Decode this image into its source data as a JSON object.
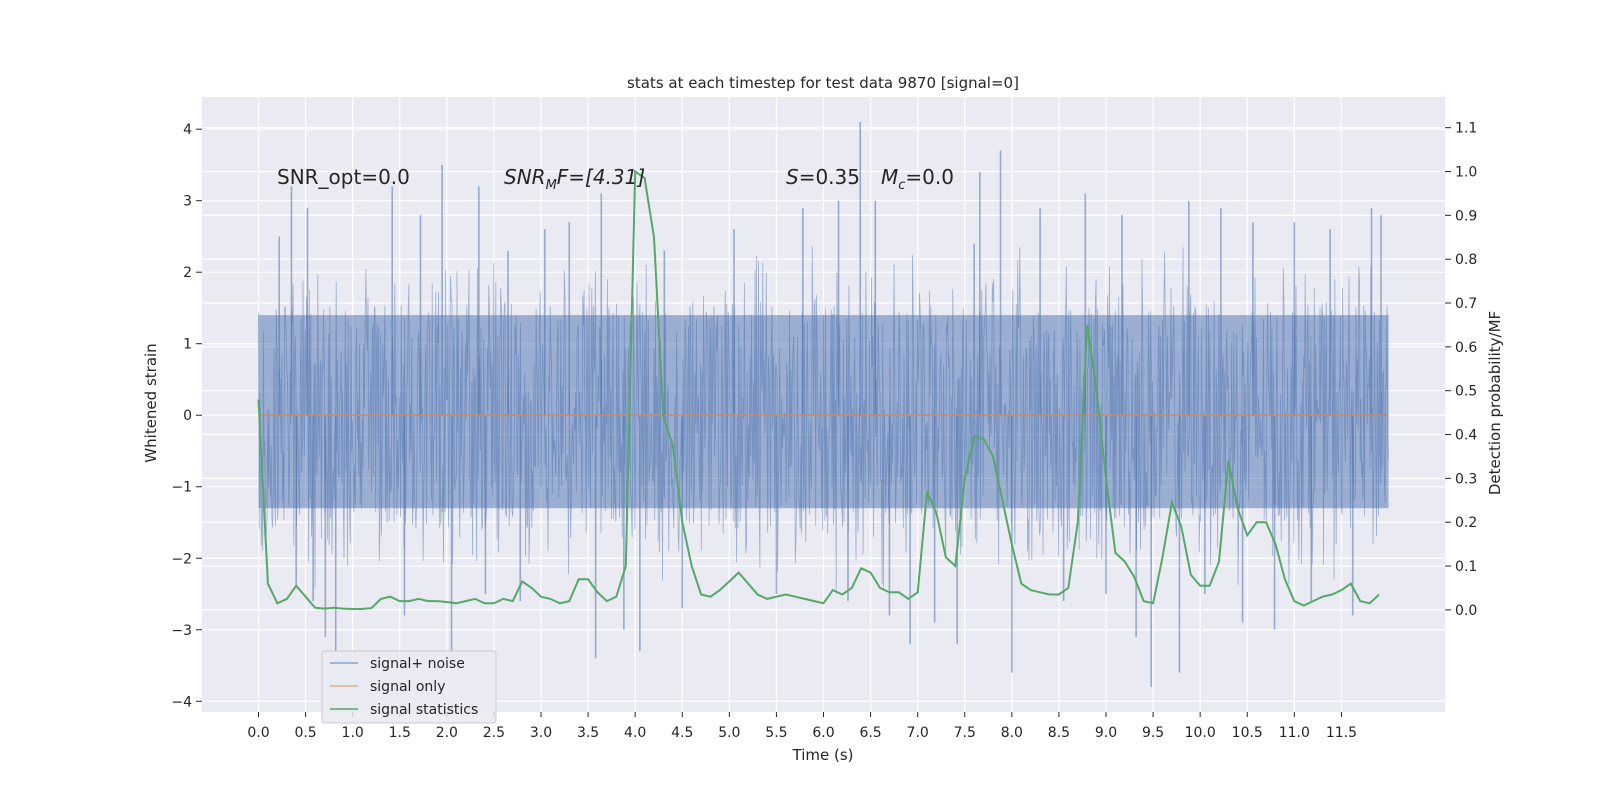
{
  "chart_data": {
    "type": "line",
    "title": "stats at each timestep for test data 9870 [signal=0]",
    "xlabel": "Time (s)",
    "ylabel": "Whitened strain",
    "y2label": "Detection probability/MF",
    "xlim": [
      -0.6,
      12.6
    ],
    "ylim": [
      -4.15,
      4.45
    ],
    "y2lim": [
      -0.233,
      1.17
    ],
    "x_ticks": [
      0.0,
      0.5,
      1.0,
      1.5,
      2.0,
      2.5,
      3.0,
      3.5,
      4.0,
      4.5,
      5.0,
      5.5,
      6.0,
      6.5,
      7.0,
      7.5,
      8.0,
      8.5,
      9.0,
      9.5,
      10.0,
      10.5,
      11.0,
      11.5
    ],
    "x_tick_labels": [
      "0.0",
      "0.5",
      "1.0",
      "1.5",
      "2.0",
      "2.5",
      "3.0",
      "3.5",
      "4.0",
      "4.5",
      "5.0",
      "5.5",
      "6.0",
      "6.5",
      "7.0",
      "7.5",
      "8.0",
      "8.5",
      "9.0",
      "9.5",
      "10.0",
      "10.5",
      "11.0",
      "11.5"
    ],
    "y_ticks": [
      -4,
      -3,
      -2,
      -1,
      0,
      1,
      2,
      3,
      4
    ],
    "y_tick_labels": [
      "−4",
      "−3",
      "−2",
      "−1",
      "0",
      "1",
      "2",
      "3",
      "4"
    ],
    "y2_ticks": [
      0.0,
      0.1,
      0.2,
      0.3,
      0.4,
      0.5,
      0.6,
      0.7,
      0.8,
      0.9,
      1.0,
      1.1
    ],
    "y2_tick_labels": [
      "0.0",
      "0.1",
      "0.2",
      "0.3",
      "0.4",
      "0.5",
      "0.6",
      "0.7",
      "0.8",
      "0.9",
      "1.0",
      "1.1"
    ],
    "grid": true,
    "legend_position": "bottom-left",
    "annotations": {
      "snr_opt": "SNR_opt=0.0",
      "snr_mf_main": "SNR",
      "snr_mf_sub": "M",
      "snr_mf_tail": "F=[4.31]",
      "s_label": "S",
      "s_value": "=0.35",
      "mc_main": "M",
      "mc_sub": "c",
      "mc_value": "=0.0"
    },
    "colors": {
      "signal_noise": "#4c72b0",
      "signal_only": "#dd8452",
      "signal_statistics": "#55a868",
      "plot_bg": "#eaeaf2",
      "grid": "#ffffff"
    },
    "series": [
      {
        "name": "signal+ noise",
        "axis": "left",
        "style": "dense-noise",
        "x_range": [
          0.0,
          12.0
        ],
        "core_band": [
          -1.3,
          1.4
        ],
        "spikes": [
          {
            "x": 0.22,
            "y": 2.5
          },
          {
            "x": 0.35,
            "y": 3.2
          },
          {
            "x": 0.4,
            "y": -2.4
          },
          {
            "x": 0.52,
            "y": 2.9
          },
          {
            "x": 0.58,
            "y": -2.6
          },
          {
            "x": 0.71,
            "y": -3.1
          },
          {
            "x": 0.82,
            "y": -3.3
          },
          {
            "x": 1.42,
            "y": 3.2
          },
          {
            "x": 1.55,
            "y": -2.8
          },
          {
            "x": 1.72,
            "y": 2.8
          },
          {
            "x": 1.95,
            "y": 3.5
          },
          {
            "x": 2.05,
            "y": -3.3
          },
          {
            "x": 2.34,
            "y": 3.2
          },
          {
            "x": 2.41,
            "y": -2.5
          },
          {
            "x": 2.65,
            "y": 2.3
          },
          {
            "x": 2.78,
            "y": -2.6
          },
          {
            "x": 3.04,
            "y": 2.6
          },
          {
            "x": 3.3,
            "y": 2.7
          },
          {
            "x": 3.58,
            "y": -3.4
          },
          {
            "x": 3.64,
            "y": 3.1
          },
          {
            "x": 3.88,
            "y": -3.0
          },
          {
            "x": 4.05,
            "y": -3.3
          },
          {
            "x": 4.31,
            "y": 2.3
          },
          {
            "x": 4.5,
            "y": -2.7
          },
          {
            "x": 5.05,
            "y": 2.6
          },
          {
            "x": 5.5,
            "y": -2.5
          },
          {
            "x": 5.78,
            "y": 2.9
          },
          {
            "x": 6.16,
            "y": 3.0
          },
          {
            "x": 6.26,
            "y": -2.6
          },
          {
            "x": 6.39,
            "y": 4.1
          },
          {
            "x": 6.55,
            "y": 3.0
          },
          {
            "x": 6.7,
            "y": -2.8
          },
          {
            "x": 6.92,
            "y": -3.2
          },
          {
            "x": 7.18,
            "y": -2.9
          },
          {
            "x": 7.42,
            "y": -3.2
          },
          {
            "x": 7.6,
            "y": 2.4
          },
          {
            "x": 7.66,
            "y": 3.4
          },
          {
            "x": 7.88,
            "y": 3.7
          },
          {
            "x": 8.0,
            "y": -3.6
          },
          {
            "x": 8.3,
            "y": 2.9
          },
          {
            "x": 8.55,
            "y": -2.6
          },
          {
            "x": 8.78,
            "y": 3.1
          },
          {
            "x": 9.0,
            "y": -2.5
          },
          {
            "x": 9.17,
            "y": 2.8
          },
          {
            "x": 9.32,
            "y": -3.1
          },
          {
            "x": 9.48,
            "y": -3.8
          },
          {
            "x": 9.78,
            "y": -3.6
          },
          {
            "x": 9.88,
            "y": 3.0
          },
          {
            "x": 10.05,
            "y": -2.5
          },
          {
            "x": 10.22,
            "y": 2.9
          },
          {
            "x": 10.45,
            "y": -2.9
          },
          {
            "x": 10.56,
            "y": 2.7
          },
          {
            "x": 10.79,
            "y": -3.0
          },
          {
            "x": 11.0,
            "y": 2.7
          },
          {
            "x": 11.18,
            "y": -2.6
          },
          {
            "x": 11.38,
            "y": 2.6
          },
          {
            "x": 11.62,
            "y": -2.8
          },
          {
            "x": 11.82,
            "y": 2.9
          },
          {
            "x": 11.92,
            "y": 2.8
          }
        ]
      },
      {
        "name": "signal only",
        "axis": "left",
        "x": [
          0.0,
          12.0
        ],
        "y": [
          0.0,
          0.0
        ]
      },
      {
        "name": "signal statistics",
        "axis": "right",
        "x": [
          0.0,
          0.1,
          0.2,
          0.3,
          0.4,
          0.5,
          0.6,
          0.7,
          0.8,
          0.9,
          1.0,
          1.1,
          1.2,
          1.3,
          1.4,
          1.5,
          1.6,
          1.7,
          1.8,
          1.9,
          2.0,
          2.1,
          2.2,
          2.3,
          2.4,
          2.5,
          2.6,
          2.7,
          2.8,
          2.9,
          3.0,
          3.1,
          3.2,
          3.3,
          3.4,
          3.5,
          3.6,
          3.7,
          3.8,
          3.9,
          4.0,
          4.1,
          4.2,
          4.3,
          4.4,
          4.5,
          4.6,
          4.7,
          4.8,
          4.9,
          5.0,
          5.1,
          5.2,
          5.3,
          5.4,
          5.5,
          5.6,
          5.7,
          5.8,
          5.9,
          6.0,
          6.1,
          6.2,
          6.3,
          6.4,
          6.5,
          6.6,
          6.7,
          6.8,
          6.9,
          7.0,
          7.1,
          7.2,
          7.3,
          7.4,
          7.5,
          7.6,
          7.7,
          7.8,
          7.9,
          8.0,
          8.1,
          8.2,
          8.3,
          8.4,
          8.5,
          8.6,
          8.7,
          8.8,
          8.9,
          9.0,
          9.1,
          9.2,
          9.3,
          9.4,
          9.5,
          9.6,
          9.7,
          9.8,
          9.9,
          10.0,
          10.1,
          10.2,
          10.3,
          10.4,
          10.5,
          10.6,
          10.7,
          10.8,
          10.9,
          11.0,
          11.1,
          11.2,
          11.3,
          11.4,
          11.5,
          11.6,
          11.7,
          11.8,
          11.9
        ],
        "y": [
          0.48,
          0.06,
          0.015,
          0.025,
          0.055,
          0.03,
          0.005,
          0.003,
          0.005,
          0.003,
          0.002,
          0.002,
          0.004,
          0.025,
          0.03,
          0.02,
          0.02,
          0.025,
          0.02,
          0.02,
          0.018,
          0.015,
          0.02,
          0.025,
          0.015,
          0.015,
          0.025,
          0.02,
          0.065,
          0.05,
          0.03,
          0.025,
          0.015,
          0.02,
          0.07,
          0.07,
          0.04,
          0.02,
          0.03,
          0.1,
          1.0,
          0.985,
          0.85,
          0.44,
          0.375,
          0.2,
          0.1,
          0.035,
          0.03,
          0.045,
          0.065,
          0.085,
          0.06,
          0.035,
          0.025,
          0.03,
          0.035,
          0.03,
          0.025,
          0.02,
          0.015,
          0.045,
          0.035,
          0.05,
          0.095,
          0.085,
          0.05,
          0.04,
          0.04,
          0.025,
          0.04,
          0.27,
          0.22,
          0.12,
          0.1,
          0.3,
          0.395,
          0.39,
          0.35,
          0.25,
          0.15,
          0.06,
          0.045,
          0.04,
          0.035,
          0.035,
          0.05,
          0.2,
          0.65,
          0.5,
          0.3,
          0.13,
          0.11,
          0.075,
          0.02,
          0.015,
          0.12,
          0.245,
          0.19,
          0.08,
          0.055,
          0.055,
          0.11,
          0.34,
          0.23,
          0.17,
          0.2,
          0.2,
          0.15,
          0.07,
          0.02,
          0.01,
          0.02,
          0.03,
          0.035,
          0.045,
          0.06,
          0.02,
          0.015,
          0.035
        ]
      }
    ]
  }
}
